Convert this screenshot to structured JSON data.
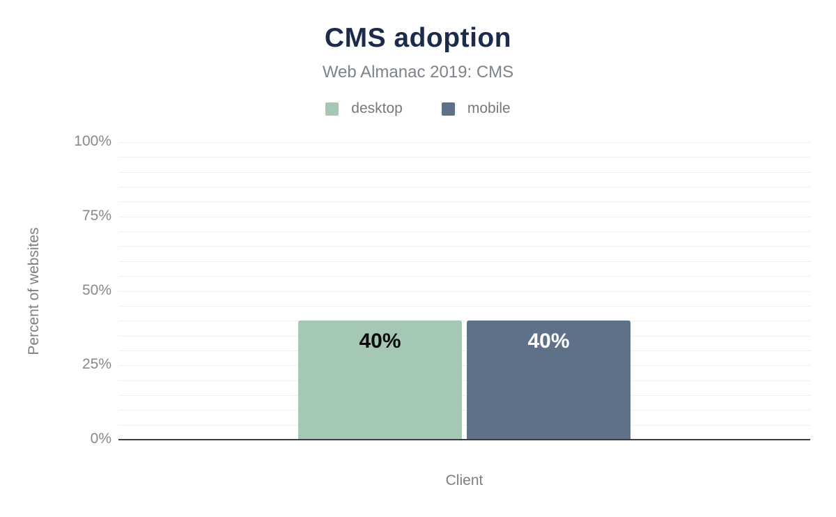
{
  "header": {
    "title": "CMS adoption",
    "subtitle": "Web Almanac 2019: CMS"
  },
  "chart_data": {
    "type": "bar",
    "title": "CMS adoption",
    "subtitle": "Web Almanac 2019: CMS",
    "categories": [
      "Client"
    ],
    "series": [
      {
        "name": "desktop",
        "values": [
          40
        ],
        "labels": [
          "40%"
        ],
        "color": "#a5c8b4",
        "label_color": "#0b0b0b"
      },
      {
        "name": "mobile",
        "values": [
          40
        ],
        "labels": [
          "40%"
        ],
        "color": "#5e7189",
        "label_color": "#ffffff"
      }
    ],
    "xlabel": "Client",
    "ylabel": "Percent of websites",
    "ylim": [
      0,
      100
    ],
    "y_ticks": [
      {
        "value": 0,
        "label": "0%"
      },
      {
        "value": 25,
        "label": "25%"
      },
      {
        "value": 50,
        "label": "50%"
      },
      {
        "value": 75,
        "label": "75%"
      },
      {
        "value": 100,
        "label": "100%"
      }
    ],
    "minor_grid_step": 5,
    "grid": true,
    "legend_position": "top"
  },
  "colors": {
    "title": "#1b2b49",
    "secondary_text": "#7b8087",
    "tick_text": "#85898f",
    "gridline": "#efefef",
    "axis_line": "#363d47",
    "background": "#ffffff"
  }
}
